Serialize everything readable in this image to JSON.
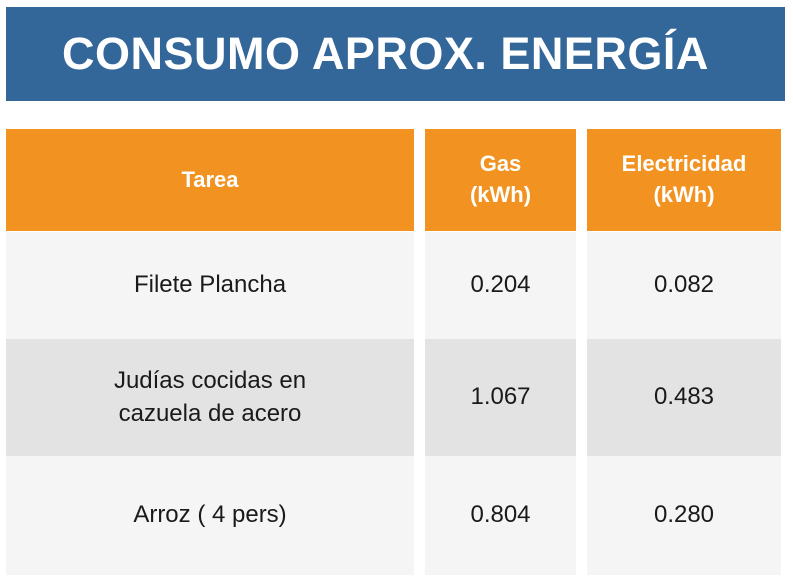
{
  "title": "CONSUMO APROX. ENERGÍA",
  "table": {
    "headers": {
      "task": "Tarea",
      "gas": "Gas\n(kWh)",
      "electricity": "Electricidad\n(kWh)"
    },
    "rows": [
      {
        "task": "Filete Plancha",
        "gas": "0.204",
        "electricity": "0.082"
      },
      {
        "task": "Judías cocidas en\ncazuela de acero",
        "gas": "1.067",
        "electricity": "0.483"
      },
      {
        "task": "Arroz ( 4 pers)",
        "gas": "0.804",
        "electricity": "0.280"
      }
    ]
  },
  "colors": {
    "title_background": "#336699",
    "header_background": "#f29220",
    "row_light": "#f5f5f5",
    "row_dark": "#e3e3e3"
  }
}
